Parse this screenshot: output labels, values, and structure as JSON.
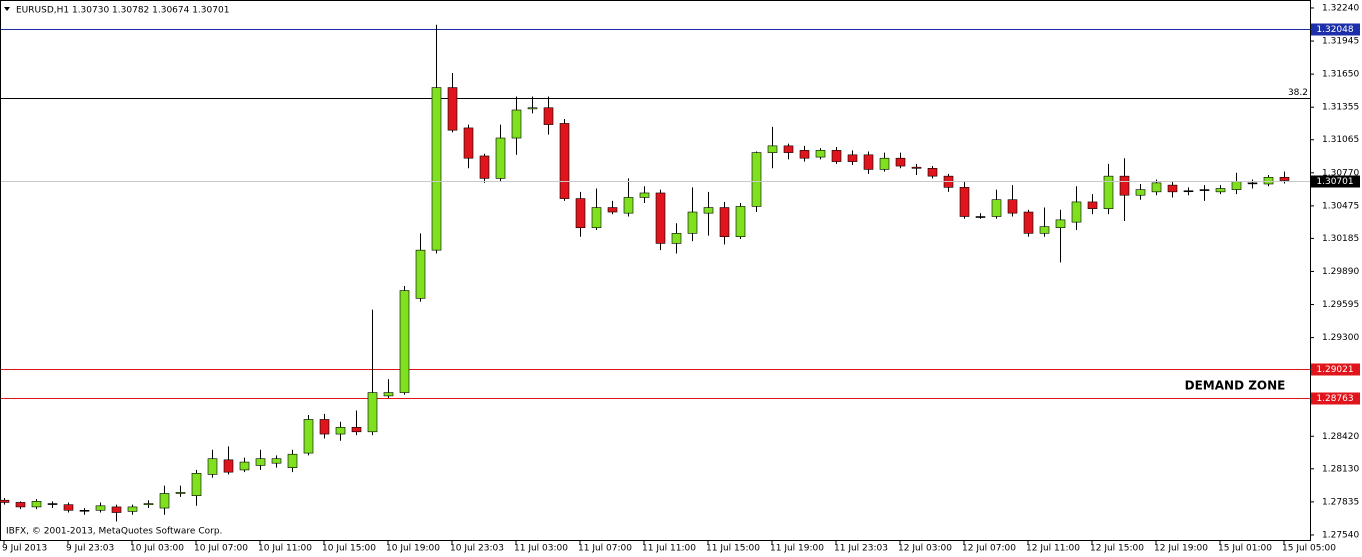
{
  "chart_data": {
    "type": "candlestick",
    "header": "EURUSD,H1  1.30730 1.30782 1.30674 1.30701",
    "copyright": "IBFX, © 2001-2013, MetaQuotes Software Corp.",
    "annotation": "DEMAND ZONE",
    "up_color": "#7fe020",
    "down_color": "#e0151b",
    "categories": [
      "9 Jul 2013",
      null,
      null,
      null,
      "9 Jul 23:03",
      null,
      null,
      null,
      "10 Jul 03:00",
      null,
      null,
      null,
      "10 Jul 07:00",
      null,
      null,
      null,
      "10 Jul 11:00",
      null,
      null,
      null,
      "10 Jul 15:00",
      null,
      null,
      null,
      "10 Jul 19:00",
      null,
      null,
      null,
      "10 Jul 23:03",
      null,
      null,
      null,
      "11 Jul 03:00",
      null,
      null,
      null,
      "11 Jul 07:00",
      null,
      null,
      null,
      "11 Jul 11:00",
      null,
      null,
      null,
      "11 Jul 15:00",
      null,
      null,
      null,
      "11 Jul 19:00",
      null,
      null,
      null,
      "11 Jul 23:03",
      null,
      null,
      null,
      "12 Jul 03:00",
      null,
      null,
      null,
      "12 Jul 07:00",
      null,
      null,
      null,
      "12 Jul 11:00",
      null,
      null,
      null,
      "12 Jul 15:00",
      null,
      null,
      null,
      "12 Jul 19:00",
      null,
      null,
      null,
      "15 Jul 01:00",
      null,
      null,
      null,
      "15 Jul 05:00"
    ],
    "open": [
      1.2785,
      1.2783,
      1.2779,
      1.2782,
      1.2781,
      1.2776,
      1.2776,
      1.2779,
      1.2775,
      1.2781,
      1.2778,
      1.2791,
      1.2789,
      1.2808,
      1.2821,
      1.2812,
      1.2816,
      1.2818,
      1.2814,
      1.2827,
      1.2857,
      1.2844,
      1.285,
      1.2846,
      1.2878,
      1.2881,
      1.2965,
      1.3008,
      1.3153,
      1.3117,
      1.3092,
      1.3072,
      1.3108,
      1.3134,
      1.3135,
      1.3121,
      1.3054,
      1.3028,
      1.3046,
      1.3041,
      1.3055,
      1.3059,
      1.3014,
      1.3023,
      1.3041,
      1.3046,
      1.302,
      1.3047,
      1.3095,
      1.3101,
      1.3097,
      1.3091,
      1.3097,
      1.3093,
      1.3093,
      1.308,
      1.309,
      1.3082,
      1.3081,
      1.3074,
      1.3064,
      1.3038,
      1.3038,
      1.3053,
      1.3042,
      1.3023,
      1.3028,
      1.3033,
      1.3051,
      1.3045,
      1.3074,
      1.3057,
      1.306,
      1.3066,
      1.3061,
      1.3062,
      1.306,
      1.3062,
      1.3068,
      1.3067,
      1.3073
    ],
    "high": [
      1.2787,
      1.2784,
      1.2786,
      1.2784,
      1.2783,
      1.2778,
      1.2783,
      1.2781,
      1.2781,
      1.2785,
      1.2798,
      1.2798,
      1.2812,
      1.283,
      1.2833,
      1.2823,
      1.283,
      1.2825,
      1.283,
      1.2861,
      1.2862,
      1.2855,
      1.2865,
      1.2955,
      1.2893,
      1.2976,
      1.3023,
      1.3209,
      1.3166,
      1.312,
      1.3094,
      1.312,
      1.3145,
      1.3145,
      1.3145,
      1.3125,
      1.306,
      1.3063,
      1.3052,
      1.3072,
      1.3065,
      1.3062,
      1.3032,
      1.3064,
      1.306,
      1.3051,
      1.305,
      1.3096,
      1.3118,
      1.3103,
      1.3101,
      1.3099,
      1.31,
      1.3097,
      1.3096,
      1.3095,
      1.3095,
      1.3085,
      1.3083,
      1.3076,
      1.3069,
      1.3041,
      1.3062,
      1.3066,
      1.3044,
      1.3046,
      1.3044,
      1.3065,
      1.3058,
      1.3085,
      1.309,
      1.3067,
      1.3071,
      1.3069,
      1.3064,
      1.3066,
      1.3066,
      1.3077,
      1.3071,
      1.3075,
      1.30782
    ],
    "low": [
      1.2781,
      1.2777,
      1.2777,
      1.2778,
      1.2774,
      1.2772,
      1.2774,
      1.2766,
      1.2772,
      1.2778,
      1.2772,
      1.2788,
      1.278,
      1.2805,
      1.2808,
      1.281,
      1.2812,
      1.2814,
      1.281,
      1.2825,
      1.284,
      1.2838,
      1.2843,
      1.2843,
      1.2876,
      1.2879,
      1.2962,
      1.3005,
      1.3113,
      1.3081,
      1.3068,
      1.3069,
      1.3093,
      1.313,
      1.3111,
      1.3052,
      1.302,
      1.3026,
      1.304,
      1.3038,
      1.305,
      1.3008,
      1.3005,
      1.3016,
      1.3021,
      1.3013,
      1.3018,
      1.3042,
      1.3081,
      1.3089,
      1.3087,
      1.3089,
      1.3085,
      1.3084,
      1.3076,
      1.3078,
      1.3081,
      1.3075,
      1.3072,
      1.306,
      1.3036,
      1.3036,
      1.3036,
      1.3038,
      1.302,
      1.302,
      1.2997,
      1.3026,
      1.304,
      1.304,
      1.3034,
      1.3053,
      1.3057,
      1.3055,
      1.3057,
      1.3052,
      1.3058,
      1.3058,
      1.3063,
      1.3065,
      1.30674
    ],
    "close": [
      1.2783,
      1.2779,
      1.2784,
      1.2782,
      1.2776,
      1.2776,
      1.278,
      1.2774,
      1.2779,
      1.2782,
      1.2791,
      1.2792,
      1.2809,
      1.2822,
      1.281,
      1.2819,
      1.2822,
      1.2822,
      1.2826,
      1.2857,
      1.2844,
      1.285,
      1.2846,
      1.2881,
      1.2881,
      1.2972,
      1.3008,
      1.3153,
      1.3115,
      1.309,
      1.3072,
      1.3108,
      1.3133,
      1.3135,
      1.312,
      1.3054,
      1.3028,
      1.3046,
      1.3042,
      1.3055,
      1.3059,
      1.3014,
      1.3023,
      1.3042,
      1.3046,
      1.302,
      1.3047,
      1.3095,
      1.3101,
      1.3095,
      1.309,
      1.3097,
      1.3087,
      1.3087,
      1.308,
      1.309,
      1.3083,
      1.3081,
      1.3074,
      1.3064,
      1.3038,
      1.3038,
      1.3053,
      1.3041,
      1.3023,
      1.3029,
      1.3035,
      1.3051,
      1.3045,
      1.3074,
      1.3057,
      1.3062,
      1.3068,
      1.306,
      1.3061,
      1.3062,
      1.3063,
      1.3069,
      1.3068,
      1.3073,
      1.30701
    ],
    "ylim": [
      1.27495,
      1.32311
    ],
    "yticks": [
      {
        "value": 1.3224,
        "label": "1.32240"
      },
      {
        "value": 1.31945,
        "label": "1.31945"
      },
      {
        "value": 1.3165,
        "label": "1.31650"
      },
      {
        "value": 1.31355,
        "label": "1.31355"
      },
      {
        "value": 1.31065,
        "label": "1.31065"
      },
      {
        "value": 1.3077,
        "label": "1.30770"
      },
      {
        "value": 1.30475,
        "label": "1.30475"
      },
      {
        "value": 1.30185,
        "label": "1.30185"
      },
      {
        "value": 1.2989,
        "label": "1.29890"
      },
      {
        "value": 1.29595,
        "label": "1.29595"
      },
      {
        "value": 1.293,
        "label": "1.29300"
      },
      {
        "value": 1.2842,
        "label": "1.28420"
      },
      {
        "value": 1.2813,
        "label": "1.28130"
      },
      {
        "value": 1.27835,
        "label": "1.27835"
      },
      {
        "value": 1.2754,
        "label": "1.27540"
      }
    ],
    "levels": [
      {
        "value": 1.32048,
        "label": "1.32048",
        "color": "#1c2fa8"
      },
      {
        "value": 1.31437,
        "label": "38.2",
        "color": "#000000"
      },
      {
        "value": 1.29021,
        "label": "1.29021",
        "color": "#e0151b"
      },
      {
        "value": 1.28763,
        "label": "1.28763",
        "color": "#e0151b"
      }
    ],
    "current_price": {
      "value": 1.30701,
      "label": "1.30701"
    },
    "grid": false
  }
}
